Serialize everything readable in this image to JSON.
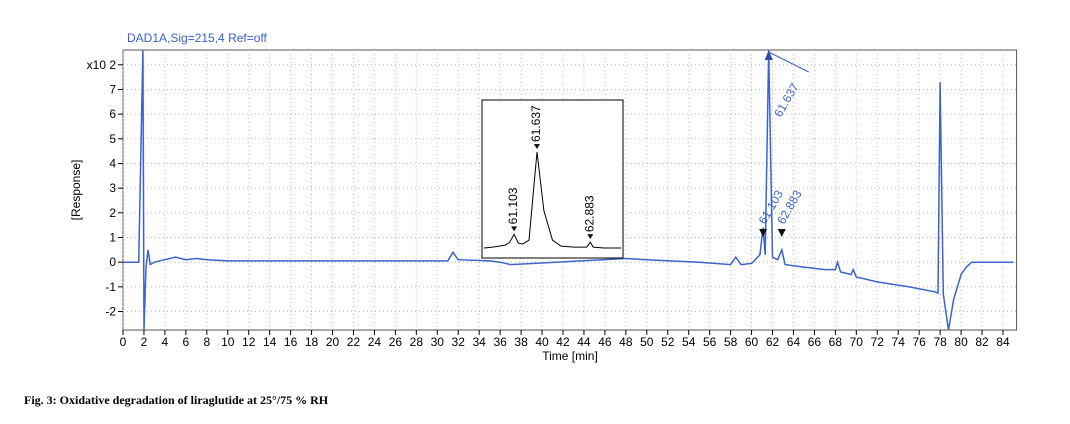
{
  "chart_data": [
    {
      "type": "line",
      "title": "DAD1A,Sig=215,4  Ref=off",
      "x_label": "Time [min]",
      "y_label": "[Response]",
      "xlim": [
        0,
        85.3
      ],
      "ylim": [
        -2.75,
        8.6
      ],
      "xticks": [
        0,
        2,
        4,
        6,
        8,
        10,
        12,
        14,
        16,
        18,
        20,
        22,
        24,
        26,
        28,
        30,
        32,
        34,
        36,
        38,
        40,
        42,
        44,
        46,
        48,
        50,
        52,
        54,
        56,
        58,
        60,
        62,
        64,
        66,
        68,
        70,
        72,
        74,
        76,
        78,
        80,
        82,
        84
      ],
      "yticks": [
        -2,
        -1,
        0,
        1,
        2,
        3,
        4,
        5,
        6,
        7,
        {
          "value": 8,
          "label": "x10 2"
        }
      ],
      "grid": true,
      "series": [
        {
          "color": "#3c64c8",
          "x": [
            0,
            1.5,
            1.9,
            2.0,
            2.2,
            2.4,
            2.6,
            3,
            4,
            5,
            6,
            7,
            8,
            10,
            15,
            20,
            25,
            30,
            31,
            31.5,
            32,
            35,
            36,
            37,
            48,
            50,
            55,
            58,
            58.5,
            59,
            60,
            60.8,
            61.103,
            61.3,
            61.637,
            62,
            62.5,
            62.883,
            63.2,
            65,
            67,
            68,
            68.2,
            68.5,
            69.5,
            69.7,
            70,
            72,
            75,
            77.5,
            77.8,
            78.0,
            78.3,
            78.8,
            79.3,
            80,
            80.5,
            81,
            85
          ],
          "values": [
            0,
            0,
            8.6,
            -2.75,
            -0.2,
            0.5,
            -0.1,
            0,
            0.1,
            0.2,
            0.1,
            0.15,
            0.1,
            0.05,
            0.05,
            0.05,
            0.05,
            0.05,
            0.05,
            0.4,
            0.1,
            0.05,
            0,
            -0.1,
            0.15,
            0.1,
            0,
            -0.1,
            0.2,
            -0.1,
            -0.05,
            0.3,
            1.4,
            0.3,
            8.6,
            0.2,
            0.1,
            0.5,
            -0.1,
            -0.2,
            -0.3,
            -0.3,
            0,
            -0.4,
            -0.5,
            -0.3,
            -0.6,
            -0.8,
            -1,
            -1.2,
            -1.25,
            7.3,
            -1.3,
            -2.75,
            -1.5,
            -0.5,
            -0.2,
            0,
            0
          ]
        }
      ],
      "annotations": [
        {
          "label": "61.637",
          "x": 61.637,
          "y": 8.6
        },
        {
          "label": "61.103",
          "x": 61.103,
          "y": 1.4
        },
        {
          "label": "62.883",
          "x": 62.883,
          "y": 0.5
        }
      ]
    },
    {
      "type": "inset",
      "series": [
        {
          "color": "#000000",
          "x": [
            60.4,
            60.6,
            60.9,
            61.0,
            61.103,
            61.2,
            61.3,
            61.45,
            61.637,
            61.8,
            62.0,
            62.2,
            62.5,
            62.8,
            62.883,
            62.95,
            63.2,
            63.6
          ],
          "values": [
            0.02,
            0.03,
            0.05,
            0.08,
            0.16,
            0.07,
            0.06,
            0.1,
            1.0,
            0.4,
            0.1,
            0.04,
            0.03,
            0.03,
            0.08,
            0.03,
            0.02,
            0.02
          ]
        }
      ],
      "annotations": [
        {
          "label": "61.103",
          "x": 61.103,
          "y": 0.16
        },
        {
          "label": "61.637",
          "x": 61.637,
          "y": 1.0
        },
        {
          "label": "62.883",
          "x": 62.883,
          "y": 0.08
        }
      ]
    }
  ],
  "caption": "Fig. 3: Oxidative degradation of liraglutide at 25°/75 % RH"
}
